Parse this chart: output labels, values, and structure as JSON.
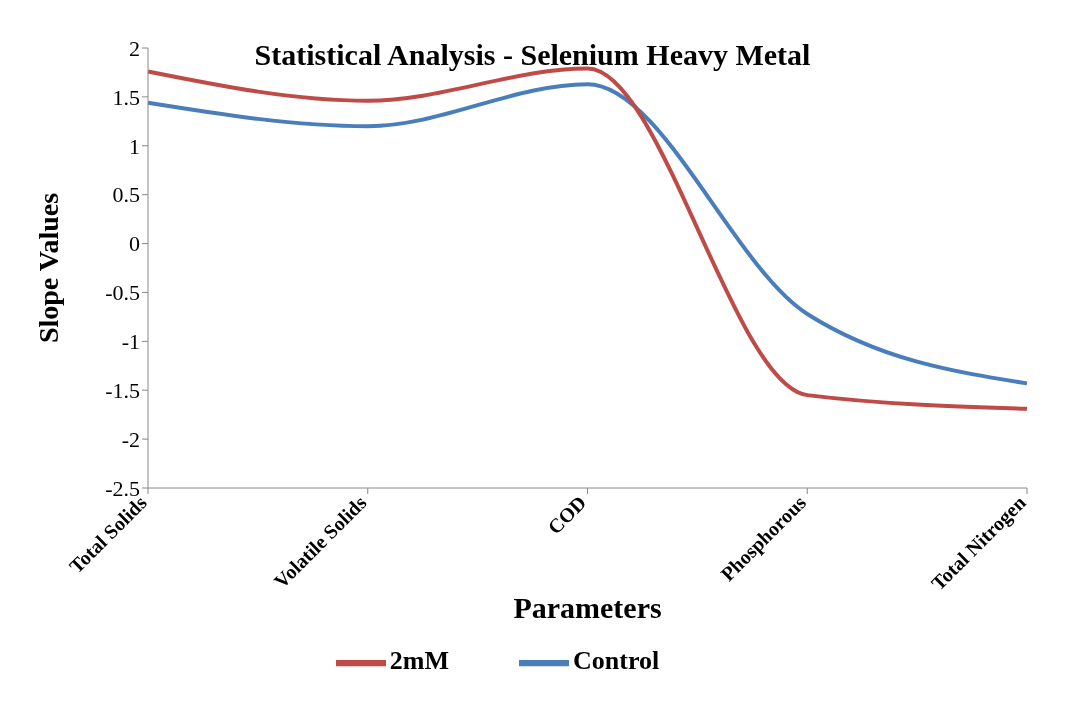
{
  "chart_data": {
    "type": "line",
    "title": "Statistical Analysis - Selenium Heavy Metal",
    "xlabel": "Parameters",
    "ylabel": "Slope Values",
    "categories": [
      "Total Solids",
      "Volatile Solids",
      "COD",
      "Phosphorous",
      "Total Nitrogen"
    ],
    "series": [
      {
        "name": "Control",
        "color": "#4a7ebb",
        "values": [
          1.44,
          1.2,
          1.63,
          -0.72,
          -1.43
        ]
      },
      {
        "name": "2mM",
        "color": "#be4b48",
        "values": [
          1.76,
          1.46,
          1.79,
          -1.55,
          -1.69
        ]
      }
    ],
    "ylim": [
      -2.5,
      2
    ],
    "yticks": [
      -2.5,
      -2,
      -1.5,
      -1,
      -0.5,
      0,
      0.5,
      1,
      1.5,
      2
    ],
    "grid": false,
    "legend": "bottom",
    "marker": "none",
    "line_style": "solid"
  }
}
